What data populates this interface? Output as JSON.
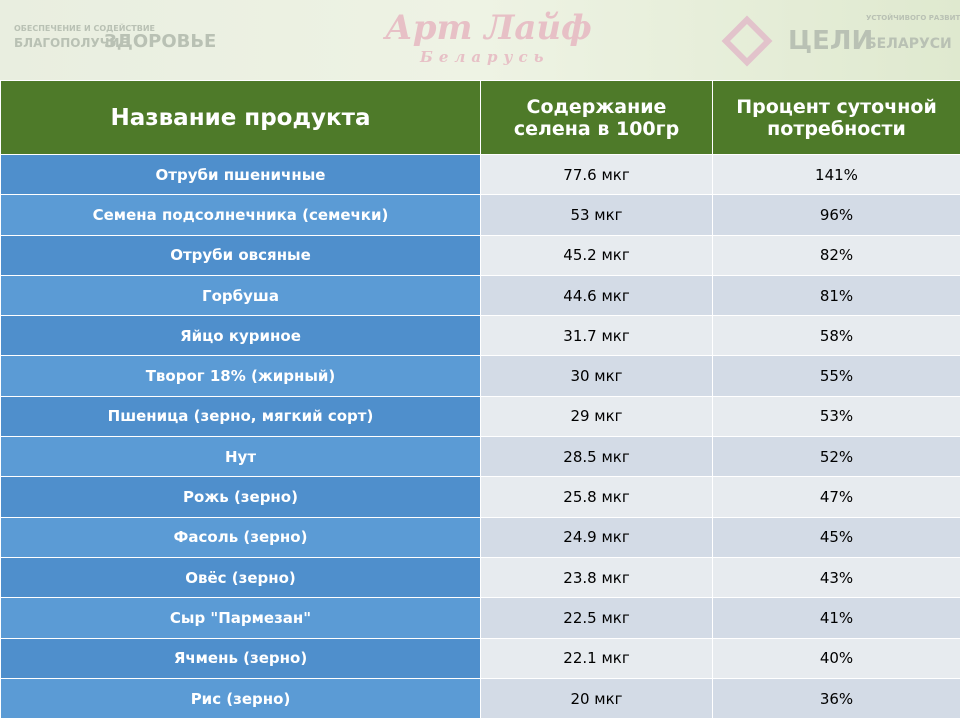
{
  "logos": {
    "left_top": "ОБЕСПЕЧЕНИЕ И СОДЕЙСТВИЕ",
    "left_a": "БЛАГОПОЛУЧИЕ",
    "left_b": "ЗДОРОВЬЕ",
    "center_a": "Арт Лайф",
    "center_b": "Беларусь",
    "right_a": "ЦЕЛИ",
    "right_top": "УСТОЙЧИВОГО РАЗВИТИЯ",
    "right_b": "БЕЛАРУСИ"
  },
  "table": {
    "headers": [
      "Название продукта",
      "Содержание селена в 100гр",
      "Процент суточной потребности"
    ],
    "rows": [
      [
        "Отруби пшеничные",
        "77.6 мкг",
        "141%"
      ],
      [
        "Семена подсолнечника (семечки)",
        "53 мкг",
        "96%"
      ],
      [
        "Отруби овсяные",
        "45.2 мкг",
        "82%"
      ],
      [
        "Горбуша",
        "44.6 мкг",
        "81%"
      ],
      [
        "Яйцо куриное",
        "31.7 мкг",
        "58%"
      ],
      [
        "Творог 18% (жирный)",
        "30 мкг",
        "55%"
      ],
      [
        "Пшеница  (зерно, мягкий сорт)",
        "29 мкг",
        "53%"
      ],
      [
        "Нут",
        "28.5 мкг",
        "52%"
      ],
      [
        "Рожь (зерно)",
        "25.8 мкг",
        "47%"
      ],
      [
        "Фасоль (зерно)",
        "24.9 мкг",
        "45%"
      ],
      [
        "Овёс (зерно)",
        "23.8 мкг",
        "43%"
      ],
      [
        "Сыр \"Пармезан\"",
        "22.5 мкг",
        "41%"
      ],
      [
        "Ячмень (зерно)",
        "22.1 мкг",
        "40%"
      ],
      [
        "Рис (зерно)",
        "20 мкг",
        "36%"
      ]
    ]
  }
}
